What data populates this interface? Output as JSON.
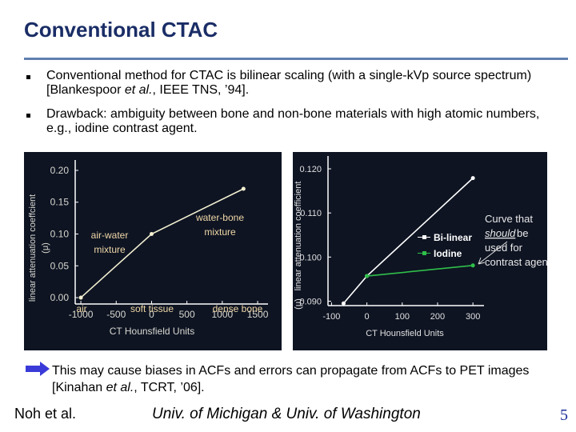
{
  "title": "Conventional CTAC",
  "bullets": [
    [
      "Conventional method for CTAC is bilinear scaling (with a single-kVp source spectrum) [Blankespoor ",
      "et al.",
      ", IEEE TNS, ’94]."
    ],
    [
      "Drawback: ambiguity between bone and non-bone materials with high atomic numbers, e.g., iodine contrast agent."
    ]
  ],
  "charts": [
    {
      "type": "line",
      "x_label": "CT Hounsfield Units",
      "y_label": [
        "linear attenuation coeffcient",
        "(μ)"
      ],
      "xlim": [
        -1080,
        1590
      ],
      "ylim": [
        -0.01,
        0.21
      ],
      "xticks": [
        -1000,
        -500,
        0,
        500,
        1000,
        1500
      ],
      "yticks": [
        {
          "value": 0,
          "label": "0.00"
        },
        {
          "value": 0.05,
          "label": "0.05"
        },
        {
          "value": 0.1,
          "label": "0.10"
        },
        {
          "value": 0.15,
          "label": "0.15"
        },
        {
          "value": 0.2,
          "label": "0.20"
        }
      ],
      "series": [
        {
          "color": "#f2efd0",
          "x": [
            -1000,
            0,
            1300
          ],
          "values": [
            0,
            0.1,
            0.171
          ]
        }
      ],
      "annotations": [
        [
          "air"
        ],
        [
          "soft tissue"
        ],
        [
          "dense bone"
        ],
        [
          "air-water",
          "mixture"
        ],
        [
          "water-bone",
          "mixture"
        ]
      ]
    },
    {
      "type": "line",
      "x_label": "CT Hounsfield Units",
      "y_label": [
        "linear attenuation coefficient",
        "(μ)"
      ],
      "xlim": [
        -110,
        320
      ],
      "ylim": [
        0.089,
        0.122
      ],
      "xticks": [
        -100,
        0,
        100,
        200,
        300
      ],
      "yticks": [
        {
          "value": 0.09,
          "label": "0.090"
        },
        {
          "value": 0.1,
          "label": "0.100"
        },
        {
          "value": 0.11,
          "label": "0.110"
        },
        {
          "value": 0.12,
          "label": "0.120"
        }
      ],
      "series": [
        {
          "name": "Bi-linear",
          "color": "#ffffff",
          "x": [
            -66,
            0,
            300
          ],
          "values": [
            0.0895,
            0.0957,
            0.1179
          ]
        },
        {
          "name": "Iodine",
          "color": "#2fbf4a",
          "x": [
            0,
            300
          ],
          "values": [
            0.0957,
            0.0981
          ]
        }
      ],
      "annotations": [
        [
          "Curve that",
          "should",
          "be",
          "used for",
          "contrast agent"
        ]
      ]
    }
  ],
  "note": [
    "This may cause biases in ACFs and errors can propagate from ACFs to PET images [Kinahan ",
    "et al.",
    ", TCRT, ’06]."
  ],
  "footer": {
    "left": "Noh et al.",
    "center": "Univ. of Michigan & Univ. of Washington",
    "page": "5"
  }
}
